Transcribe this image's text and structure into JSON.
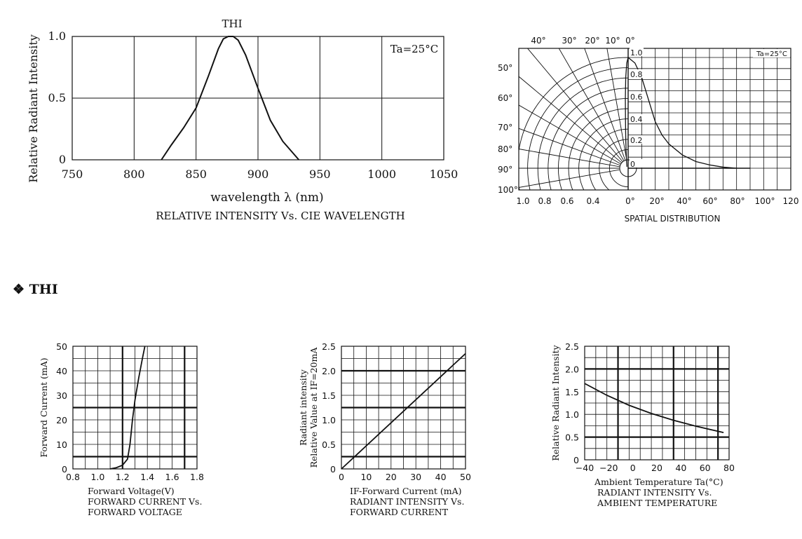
{
  "section_heading": {
    "bullet": "❖",
    "text": "THI"
  },
  "chart_data": [
    {
      "id": "spectrum",
      "type": "line",
      "title": "RELATIVE INTENSITY Vs. CIE WAVELENGTH",
      "xlabel": "wavelength λ (nm)",
      "ylabel": "Relative Radiant Intensity",
      "annotation": "Ta=25°C",
      "series_label": "THI",
      "xlim": [
        750,
        1050
      ],
      "ylim": [
        0,
        1.0
      ],
      "xticks": [
        "750",
        "800",
        "850",
        "900",
        "950",
        "1000",
        "1050"
      ],
      "yticks": [
        "0",
        "0.5",
        "1.0"
      ],
      "grid": true,
      "series": [
        {
          "x": [
            822,
            830,
            840,
            850,
            860,
            868,
            872,
            876,
            880,
            884,
            890,
            900,
            910,
            920,
            933
          ],
          "y": [
            0,
            0.12,
            0.26,
            0.42,
            0.68,
            0.9,
            0.98,
            1.0,
            1.0,
            0.97,
            0.85,
            0.58,
            0.32,
            0.15,
            0
          ]
        }
      ]
    },
    {
      "id": "spatial",
      "type": "line",
      "title": "SPATIAL DISTRIBUTION",
      "annotation": "Ta=25°C",
      "angle_labels": [
        "40°",
        "30°",
        "20°",
        "10°",
        "0°"
      ],
      "left_angle_labels": [
        "50°",
        "60°",
        "70°",
        "80°",
        "90°",
        "100°"
      ],
      "intensity_labels": [
        "1.0",
        "0.8",
        "0.6",
        "0.4",
        "0.2",
        "0"
      ],
      "bottom_left_labels": [
        "1.0",
        "0.8",
        "0.6",
        "0.4"
      ],
      "xticks": [
        "0°",
        "20°",
        "40°",
        "60°",
        "80°",
        "100°",
        "120"
      ],
      "series": [
        {
          "angle": [
            0,
            5,
            10,
            15,
            20,
            25,
            30,
            40,
            50,
            60,
            70,
            80
          ],
          "value": [
            1.0,
            0.95,
            0.82,
            0.62,
            0.42,
            0.3,
            0.22,
            0.12,
            0.06,
            0.03,
            0.01,
            0.0
          ]
        }
      ]
    },
    {
      "id": "iv",
      "type": "line",
      "title": [
        "FORWARD CURRENT Vs.",
        "FORWARD VOLTAGE"
      ],
      "xlabel": "Forward Voltage(V)",
      "ylabel": "Forward Current (mA)",
      "xlim": [
        0.8,
        1.8
      ],
      "ylim": [
        0,
        50
      ],
      "xticks": [
        "0.8",
        "1.0",
        "1.2",
        "1.4",
        "1.6",
        "1.8"
      ],
      "yticks": [
        "0",
        "10",
        "20",
        "30",
        "40",
        "50"
      ],
      "series": [
        {
          "x": [
            1.1,
            1.15,
            1.2,
            1.24,
            1.26,
            1.28,
            1.3,
            1.33,
            1.36,
            1.38
          ],
          "y": [
            0,
            0.5,
            1.5,
            4,
            10,
            20,
            28,
            37,
            45,
            50
          ]
        }
      ]
    },
    {
      "id": "ri_if",
      "type": "line",
      "title": [
        "RADIANT INTENSITY Vs.",
        "FORWARD CURRENT"
      ],
      "xlabel": "IF-Forward Current (mA)",
      "ylabel": [
        "Radiant intensity",
        "Relative Value at IF=20mA"
      ],
      "xlim": [
        0,
        50
      ],
      "ylim": [
        0,
        2.5
      ],
      "xticks": [
        "0",
        "10",
        "20",
        "30",
        "40",
        "50"
      ],
      "yticks": [
        "0",
        "0.5",
        "1.0",
        "1.5",
        "2.0",
        "2.5"
      ],
      "series": [
        {
          "x": [
            0,
            50
          ],
          "y": [
            0,
            2.35
          ]
        }
      ]
    },
    {
      "id": "ri_ta",
      "type": "line",
      "title": [
        "RADIANT INTENSITY Vs.",
        "AMBIENT TEMPERATURE"
      ],
      "xlabel": "Ambient Temperature Ta(°C)",
      "ylabel": "Relative Radiant Intensity",
      "xlim": [
        -40,
        90
      ],
      "ylim": [
        0,
        2.5
      ],
      "xticks": [
        "−40",
        "−20",
        "0",
        "20",
        "40",
        "60",
        "80"
      ],
      "yticks": [
        "0",
        "0.5",
        "1.0",
        "1.5",
        "2.0",
        "2.5"
      ],
      "series": [
        {
          "x": [
            -40,
            -20,
            0,
            20,
            40,
            60,
            85
          ],
          "y": [
            1.68,
            1.42,
            1.2,
            1.02,
            0.87,
            0.74,
            0.6
          ]
        }
      ]
    }
  ]
}
